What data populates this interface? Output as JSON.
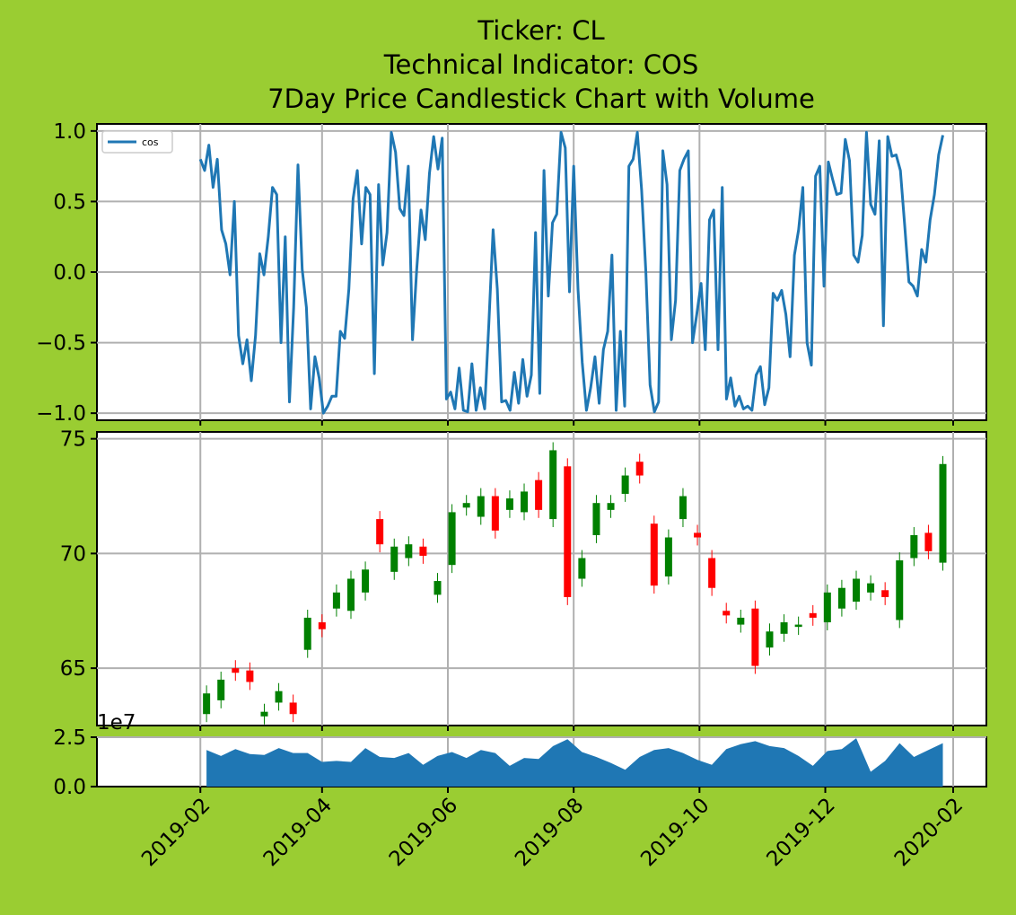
{
  "title": [
    "Ticker: CL",
    "Technical Indicator: COS",
    "7Day Price Candlestick Chart with Volume"
  ],
  "colors": {
    "background": "#9acd32",
    "line": "#1f77b4",
    "up": "#008000",
    "down": "#ff0000",
    "volume": "#1f77b4"
  },
  "chart_data": [
    {
      "type": "line",
      "name": "indicator",
      "legend": "cos",
      "legend_loc": "upper left",
      "grid": true,
      "ylim": [
        -1.05,
        1.05
      ],
      "yticks": [
        "1.0",
        "0.5",
        "0.0",
        "−0.5",
        "−1.0"
      ],
      "ytick_values": [
        1.0,
        0.5,
        0.0,
        -0.5,
        -1.0
      ],
      "x_start": "2019-02-01",
      "x_end": "2020-01-27",
      "values": [
        0.8,
        0.72,
        0.9,
        0.6,
        0.8,
        0.3,
        0.2,
        -0.02,
        0.5,
        -0.45,
        -0.65,
        -0.48,
        -0.77,
        -0.45,
        0.13,
        -0.02,
        0.25,
        0.6,
        0.55,
        -0.5,
        0.25,
        -0.92,
        -0.25,
        0.76,
        0.02,
        -0.25,
        -0.97,
        -0.6,
        -0.75,
        -1.0,
        -0.95,
        -0.88,
        -0.88,
        -0.42,
        -0.47,
        -0.12,
        0.52,
        0.72,
        0.2,
        0.6,
        0.55,
        -0.72,
        0.62,
        0.05,
        0.28,
        0.99,
        0.85,
        0.45,
        0.4,
        0.75,
        -0.48,
        0.02,
        0.44,
        0.23,
        0.7,
        0.96,
        0.73,
        0.95,
        -0.9,
        -0.85,
        -0.97,
        -0.68,
        -0.98,
        -0.99,
        -0.65,
        -0.98,
        -0.82,
        -0.97,
        -0.36,
        0.3,
        -0.12,
        -0.92,
        -0.91,
        -0.98,
        -0.71,
        -0.93,
        -0.62,
        -0.88,
        -0.73,
        0.28,
        -0.86,
        0.72,
        -0.17,
        0.35,
        0.41,
        0.99,
        0.88,
        -0.14,
        0.75,
        -0.12,
        -0.64,
        -0.98,
        -0.82,
        -0.6,
        -0.93,
        -0.55,
        -0.42,
        0.12,
        -0.98,
        -0.42,
        -0.95,
        0.75,
        0.8,
        0.99,
        0.58,
        0.0,
        -0.8,
        -0.99,
        -0.92,
        0.86,
        0.62,
        -0.48,
        -0.2,
        0.72,
        0.8,
        0.86,
        -0.5,
        -0.3,
        -0.08,
        -0.55,
        0.37,
        0.44,
        -0.55,
        0.6,
        -0.9,
        -0.75,
        -0.95,
        -0.88,
        -0.97,
        -0.95,
        -0.98,
        -0.73,
        -0.67,
        -0.94,
        -0.82,
        -0.15,
        -0.2,
        -0.13,
        -0.3,
        -0.6,
        0.12,
        0.3,
        0.6,
        -0.5,
        -0.66,
        0.68,
        0.75,
        -0.1,
        0.78,
        0.66,
        0.55,
        0.56,
        0.94,
        0.79,
        0.12,
        0.07,
        0.26,
        0.99,
        0.48,
        0.41,
        0.93,
        -0.38,
        0.96,
        0.82,
        0.83,
        0.72,
        0.33,
        -0.07,
        -0.1,
        -0.17,
        0.16,
        0.07,
        0.37,
        0.55,
        0.83,
        0.97
      ]
    },
    {
      "type": "candlestick",
      "name": "price",
      "grid": true,
      "ylim": [
        62.5,
        75.3
      ],
      "yticks": [
        "75",
        "70",
        "65"
      ],
      "ytick_values": [
        75,
        70,
        65
      ],
      "dates": [
        "2019-02-04",
        "2019-02-11",
        "2019-02-18",
        "2019-02-25",
        "2019-03-04",
        "2019-03-11",
        "2019-03-18",
        "2019-03-25",
        "2019-04-01",
        "2019-04-08",
        "2019-04-15",
        "2019-04-22",
        "2019-04-29",
        "2019-05-06",
        "2019-05-13",
        "2019-05-20",
        "2019-05-27",
        "2019-06-03",
        "2019-06-10",
        "2019-06-17",
        "2019-06-24",
        "2019-07-01",
        "2019-07-08",
        "2019-07-15",
        "2019-07-22",
        "2019-07-29",
        "2019-08-05",
        "2019-08-12",
        "2019-08-19",
        "2019-08-26",
        "2019-09-02",
        "2019-09-09",
        "2019-09-16",
        "2019-09-23",
        "2019-09-30",
        "2019-10-07",
        "2019-10-14",
        "2019-10-21",
        "2019-10-28",
        "2019-11-04",
        "2019-11-11",
        "2019-11-18",
        "2019-11-25",
        "2019-12-02",
        "2019-12-09",
        "2019-12-16",
        "2019-12-23",
        "2019-12-30",
        "2020-01-06",
        "2020-01-13",
        "2020-01-20",
        "2020-01-27"
      ],
      "open": [
        63.0,
        63.6,
        65.0,
        64.9,
        62.9,
        63.5,
        63.5,
        65.8,
        67.0,
        67.6,
        67.5,
        68.3,
        71.5,
        69.2,
        69.8,
        70.3,
        68.2,
        69.5,
        72.0,
        71.6,
        72.5,
        71.9,
        71.8,
        73.2,
        71.5,
        73.8,
        68.9,
        70.8,
        71.9,
        72.6,
        74.0,
        71.3,
        69.0,
        71.5,
        70.9,
        69.8,
        67.5,
        66.9,
        67.6,
        65.9,
        66.5,
        66.8,
        67.4,
        67.0,
        67.6,
        67.9,
        68.3,
        68.4,
        67.1,
        69.8,
        70.9,
        69.6
      ],
      "close": [
        63.9,
        64.5,
        64.8,
        64.4,
        63.1,
        64.0,
        63.0,
        67.2,
        66.7,
        68.3,
        68.9,
        69.3,
        70.4,
        70.3,
        70.4,
        69.9,
        68.8,
        71.8,
        72.2,
        72.5,
        71.0,
        72.4,
        72.7,
        71.9,
        74.5,
        68.1,
        69.8,
        72.2,
        72.2,
        73.4,
        73.4,
        68.6,
        70.7,
        72.5,
        70.7,
        68.5,
        67.3,
        67.2,
        65.1,
        66.6,
        67.0,
        66.9,
        67.2,
        68.3,
        68.5,
        68.9,
        68.7,
        68.1,
        69.7,
        70.8,
        70.1,
        73.9
      ]
    },
    {
      "type": "area",
      "name": "volume",
      "grid": true,
      "offset_label": "1e7",
      "ylim": [
        0,
        2.5
      ],
      "yticks": [
        "2.5",
        "0.0"
      ],
      "ytick_values": [
        2.5,
        0.0
      ],
      "xticks": [
        "2019-02",
        "2019-04",
        "2019-06",
        "2019-08",
        "2019-10",
        "2019-12",
        "2020-02"
      ],
      "xtick_dates": [
        "2019-02-01",
        "2019-04-01",
        "2019-06-01",
        "2019-08-01",
        "2019-10-01",
        "2019-12-01",
        "2020-02-01"
      ],
      "dates": [
        "2019-02-04",
        "2019-02-11",
        "2019-02-18",
        "2019-02-25",
        "2019-03-04",
        "2019-03-11",
        "2019-03-18",
        "2019-03-25",
        "2019-04-01",
        "2019-04-08",
        "2019-04-15",
        "2019-04-22",
        "2019-04-29",
        "2019-05-06",
        "2019-05-13",
        "2019-05-20",
        "2019-05-27",
        "2019-06-03",
        "2019-06-10",
        "2019-06-17",
        "2019-06-24",
        "2019-07-01",
        "2019-07-08",
        "2019-07-15",
        "2019-07-22",
        "2019-07-29",
        "2019-08-05",
        "2019-08-12",
        "2019-08-19",
        "2019-08-26",
        "2019-09-02",
        "2019-09-09",
        "2019-09-16",
        "2019-09-23",
        "2019-09-30",
        "2019-10-07",
        "2019-10-14",
        "2019-10-21",
        "2019-10-28",
        "2019-11-04",
        "2019-11-11",
        "2019-11-18",
        "2019-11-25",
        "2019-12-02",
        "2019-12-09",
        "2019-12-16",
        "2019-12-23",
        "2019-12-30",
        "2020-01-06",
        "2020-01-13",
        "2020-01-20",
        "2020-01-27"
      ],
      "values": [
        1.85,
        1.55,
        1.9,
        1.65,
        1.6,
        1.95,
        1.7,
        1.7,
        1.25,
        1.3,
        1.25,
        1.95,
        1.5,
        1.45,
        1.7,
        1.1,
        1.55,
        1.75,
        1.45,
        1.85,
        1.7,
        1.05,
        1.45,
        1.4,
        2.05,
        2.4,
        1.75,
        1.5,
        1.2,
        0.85,
        1.5,
        1.85,
        1.95,
        1.7,
        1.35,
        1.1,
        1.9,
        2.15,
        2.3,
        2.05,
        1.95,
        1.55,
        1.05,
        1.8,
        1.9,
        2.45,
        0.75,
        1.3,
        2.2,
        1.5,
        1.85,
        2.2
      ]
    }
  ]
}
